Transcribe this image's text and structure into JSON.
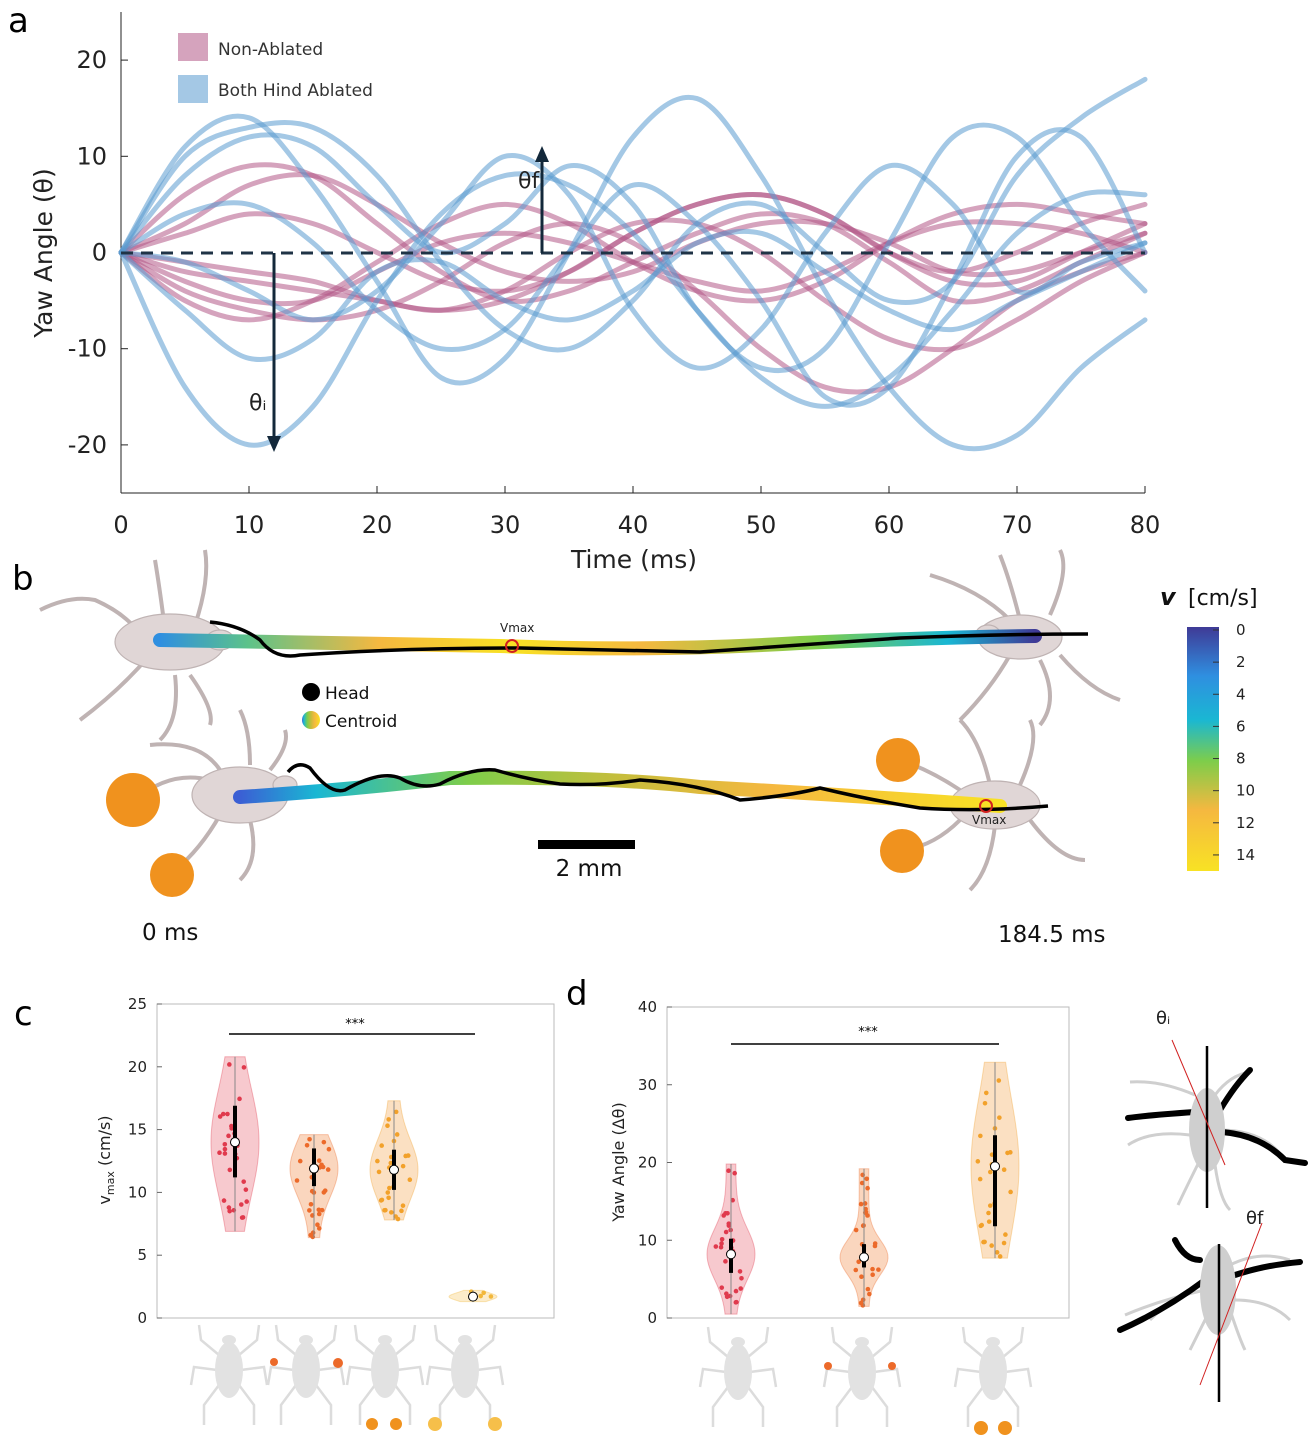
{
  "panel_letters": {
    "a": "a",
    "b": "b",
    "c": "c",
    "d": "d"
  },
  "colors": {
    "non_ablated": "#b35887",
    "hind_ablated": "#5a9bd0",
    "ablation_marker": "#f0921e",
    "body": "#e0d6d6",
    "head_trace": "#000000"
  },
  "chart_data": [
    {
      "type": "line",
      "panel": "a",
      "xlabel": "Time (ms)",
      "ylabel": "Yaw Angle (θ)",
      "xlim": [
        0,
        80
      ],
      "ylim": [
        -25,
        25
      ],
      "xticks": [
        0,
        10,
        20,
        30,
        40,
        50,
        60,
        70,
        80
      ],
      "yticks": [
        -20,
        -10,
        0,
        10,
        20
      ],
      "legend_position": "top-left",
      "legend": [
        "Non-Ablated",
        "Both Hind Ablated"
      ],
      "annotations": {
        "theta_i": "θᵢ",
        "theta_f": "θf"
      },
      "x": [
        0,
        5,
        10,
        15,
        20,
        25,
        30,
        35,
        40,
        45,
        50,
        55,
        60,
        65,
        70,
        75,
        80
      ],
      "series": [
        {
          "name": "Both Hind Ablated",
          "group": "hind_ablated",
          "values": [
            0,
            -14,
            -20,
            -16,
            -5,
            4,
            8,
            7,
            2,
            -6,
            -13,
            -16,
            -13,
            -6,
            2,
            6,
            6
          ]
        },
        {
          "name": "Both Hind Ablated",
          "group": "hind_ablated",
          "values": [
            0,
            -6,
            -11,
            -9,
            -2,
            -1,
            -5,
            -7,
            -4,
            1,
            2,
            -2,
            -6,
            -8,
            -5,
            -2,
            1
          ]
        },
        {
          "name": "Both Hind Ablated",
          "group": "hind_ablated",
          "values": [
            0,
            11,
            14,
            7,
            -3,
            -13,
            -11,
            0,
            12,
            16,
            8,
            -4,
            -14,
            -20,
            -19,
            -12,
            -7
          ]
        },
        {
          "name": "Both Hind Ablated",
          "group": "hind_ablated",
          "values": [
            0,
            10,
            13,
            13,
            8,
            -1,
            -8,
            -10,
            -5,
            3,
            5,
            0,
            -5,
            -3,
            8,
            14,
            18
          ]
        },
        {
          "name": "Both Hind Ablated",
          "group": "hind_ablated",
          "values": [
            0,
            4,
            5,
            1,
            -6,
            -10,
            -8,
            0,
            7,
            3,
            -5,
            -15,
            -14,
            -3,
            10,
            12,
            0
          ]
        },
        {
          "name": "Both Hind Ablated",
          "group": "hind_ablated",
          "values": [
            0,
            8,
            12,
            11,
            5,
            0,
            3,
            9,
            5,
            -6,
            -12,
            -10,
            1,
            12,
            12,
            3,
            -4
          ]
        },
        {
          "name": "Both Hind Ablated",
          "group": "hind_ablated",
          "values": [
            0,
            -1,
            -4,
            -7,
            -4,
            3,
            10,
            6,
            -6,
            -12,
            -8,
            2,
            9,
            5,
            -4,
            -1,
            1
          ]
        },
        {
          "name": "Non-Ablated",
          "group": "non_ablated",
          "values": [
            0,
            6,
            9,
            8,
            3,
            -2,
            -5,
            -4,
            -1,
            2,
            4,
            3,
            -1,
            -5,
            -4,
            -1,
            2
          ]
        },
        {
          "name": "Non-Ablated",
          "group": "non_ablated",
          "values": [
            0,
            3,
            7,
            8,
            5,
            1,
            -2,
            -3,
            -2,
            1,
            3,
            3,
            1,
            -2,
            -2,
            0,
            2
          ]
        },
        {
          "name": "Non-Ablated",
          "group": "non_ablated",
          "values": [
            0,
            -3,
            -5,
            -5,
            -2,
            1,
            2,
            1,
            -1,
            -3,
            -4,
            -2,
            1,
            3,
            3,
            2,
            0
          ]
        },
        {
          "name": "Non-Ablated",
          "group": "non_ablated",
          "values": [
            0,
            -5,
            -7,
            -5,
            -1,
            3,
            5,
            3,
            -1,
            -4,
            -5,
            -3,
            1,
            4,
            5,
            4,
            3
          ]
        },
        {
          "name": "Non-Ablated",
          "group": "non_ablated",
          "values": [
            0,
            2,
            4,
            3,
            0,
            -3,
            -4,
            -2,
            2,
            5,
            6,
            4,
            0,
            -3,
            -3,
            0,
            3
          ]
        },
        {
          "name": "Non-Ablated",
          "group": "non_ablated",
          "values": [
            0,
            -2,
            -3,
            -4,
            -5,
            -6,
            -4,
            0,
            3,
            3,
            0,
            -5,
            -9,
            -10,
            -7,
            -3,
            0
          ]
        },
        {
          "name": "Non-Ablated",
          "group": "non_ablated",
          "values": [
            0,
            -1,
            -2,
            -3,
            -5,
            -6,
            -5,
            -2,
            2,
            5,
            6,
            4,
            0,
            -2,
            0,
            3,
            5
          ]
        },
        {
          "name": "Non-Ablated",
          "group": "non_ablated",
          "values": [
            0,
            -4,
            -6,
            -7,
            -6,
            -3,
            1,
            3,
            1,
            -4,
            -10,
            -14,
            -14,
            -10,
            -5,
            -2,
            0
          ]
        }
      ]
    },
    {
      "type": "violin",
      "panel": "c",
      "ylabel": "vmax (cm/s)",
      "ylim": [
        0,
        25
      ],
      "yticks": [
        0,
        5,
        10,
        15,
        20,
        25
      ],
      "significance": "***",
      "groups": [
        {
          "condition": "non-ablated",
          "median": 14.0,
          "q1": 11.2,
          "q3": 16.9,
          "min": 6.9,
          "max": 20.8,
          "fill": "#f4b7bd",
          "dot": "#e03a4d"
        },
        {
          "condition": "front-ablated",
          "median": 11.9,
          "q1": 10.5,
          "q3": 13.5,
          "min": 6.4,
          "max": 14.6,
          "fill": "#f8c8a8",
          "dot": "#ec6a2a"
        },
        {
          "condition": "mid-ablated",
          "median": 11.8,
          "q1": 10.2,
          "q3": 13.4,
          "min": 7.8,
          "max": 17.3,
          "fill": "#f9d6ad",
          "dot": "#f2a12a"
        },
        {
          "condition": "hind-ablated",
          "median": 1.7,
          "q1": 1.5,
          "q3": 1.9,
          "min": 1.3,
          "max": 2.2,
          "fill": "#fbe5b8",
          "dot": "#f2b73a"
        }
      ]
    },
    {
      "type": "violin",
      "panel": "d",
      "ylabel": "Yaw Angle (Δθ)",
      "ylim": [
        0,
        40
      ],
      "yticks": [
        0,
        10,
        20,
        30,
        40
      ],
      "significance": "***",
      "groups": [
        {
          "condition": "non-ablated",
          "median": 8.2,
          "q1": 5.8,
          "q3": 10.2,
          "min": 0.5,
          "max": 19.8,
          "fill": "#f4b7bd",
          "dot": "#e03a4d"
        },
        {
          "condition": "front-ablated",
          "median": 7.8,
          "q1": 6.5,
          "q3": 9.5,
          "min": 1.5,
          "max": 19.2,
          "fill": "#f8c8a8",
          "dot": "#ec6a2a"
        },
        {
          "condition": "hind-ablated",
          "median": 19.5,
          "q1": 11.8,
          "q3": 23.5,
          "min": 7.7,
          "max": 32.9,
          "fill": "#f9d6ad",
          "dot": "#f2a12a"
        }
      ],
      "inset_labels": {
        "theta_i": "θᵢ",
        "theta_f": "θf"
      }
    },
    {
      "type": "colorbar",
      "panel": "b",
      "label_symbol": "v",
      "label_unit": "[cm/s]",
      "range": [
        0,
        15
      ],
      "ticks": [
        0,
        2,
        4,
        6,
        8,
        10,
        12,
        14
      ],
      "colormap": [
        "#3f3a96",
        "#3b5fd4",
        "#2f8fe0",
        "#1ab7d3",
        "#2bc39b",
        "#7ecd4a",
        "#c6bd3c",
        "#f5b840",
        "#f8e224"
      ]
    }
  ],
  "panel_b": {
    "legend": {
      "head": "Head",
      "centroid": "Centroid"
    },
    "vmax_label": "Vmax",
    "scale_bar": "2 mm",
    "time_start": "0 ms",
    "time_end": "184.5 ms"
  }
}
